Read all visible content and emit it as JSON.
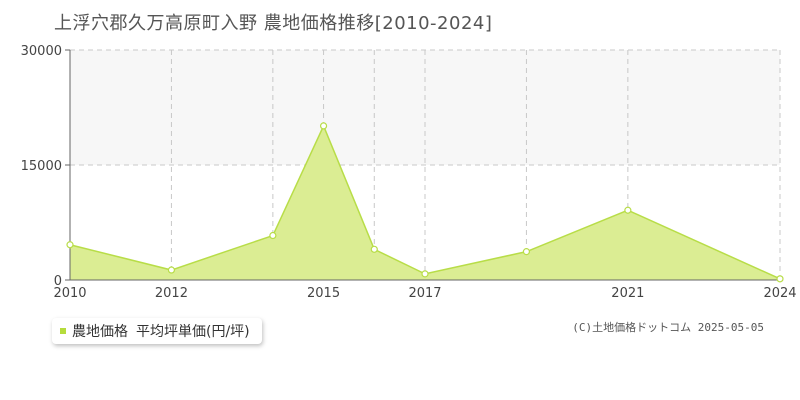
{
  "chart_data": {
    "type": "area",
    "title": "上浮穴郡久万高原町入野 農地価格推移[2010-2024]",
    "x": [
      2010,
      2012,
      2014,
      2015,
      2016,
      2017,
      2019,
      2021,
      2024
    ],
    "series": [
      {
        "name": "農地価格 平均坪単価(円/坪)",
        "values": [
          4600,
          1300,
          5800,
          20100,
          4000,
          800,
          3700,
          9100,
          150
        ]
      }
    ],
    "x_tick_labels": [
      "2010",
      "2012",
      "2015",
      "2017",
      "2021",
      "2024"
    ],
    "x_tick_values": [
      2010,
      2012,
      2015,
      2017,
      2021,
      2024
    ],
    "x_grid_values": [
      2010,
      2012,
      2014,
      2015,
      2016,
      2017,
      2019,
      2021,
      2024
    ],
    "y_ticks": [
      0,
      15000,
      30000
    ],
    "y_tick_labels": [
      "0",
      "15000",
      "30000"
    ],
    "xlim": [
      2010,
      2024
    ],
    "ylim": [
      0,
      30000
    ],
    "grid": true,
    "legend_position": "bottom-left",
    "colors": {
      "fill": "#dbed93",
      "line": "#b8dd48",
      "band": "#f7f7f7",
      "grid": "#c8c8c8"
    }
  },
  "legend": {
    "series_label": "農地価格",
    "unit_label": "平均坪単価(円/坪)"
  },
  "credit": "(C)土地価格ドットコム 2025-05-05"
}
